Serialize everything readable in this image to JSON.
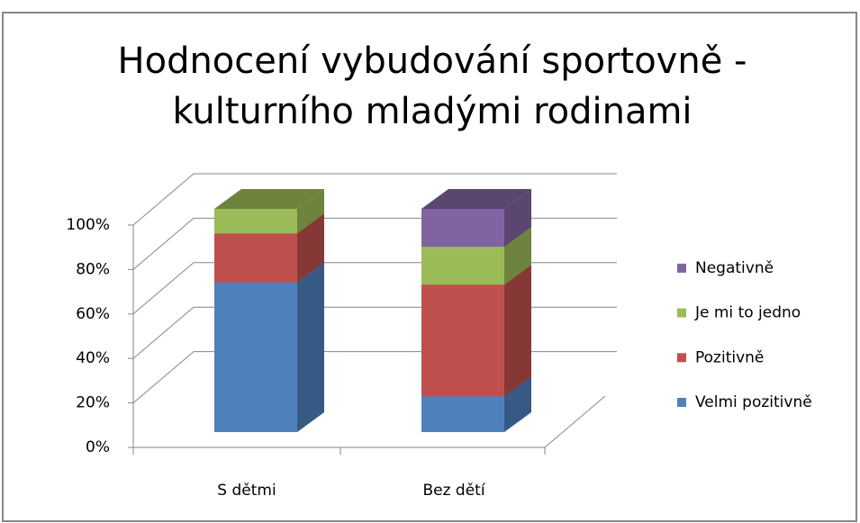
{
  "chart_data": {
    "type": "bar3d_stacked",
    "title": "Hodnocení vybudování sportovně - kulturního mladými rodinami",
    "categories": [
      "S dětmi",
      "Bez dětí"
    ],
    "series": [
      {
        "name": "Velmi pozitivně",
        "color": "#4f81bd",
        "values": [
          67,
          16
        ]
      },
      {
        "name": "Pozitivně",
        "color": "#c0504d",
        "values": [
          22,
          50
        ]
      },
      {
        "name": "Je mi to jedno",
        "color": "#9bbb59",
        "values": [
          11,
          17
        ]
      },
      {
        "name": "Negativně",
        "color": "#8064a2",
        "values": [
          0,
          17
        ]
      }
    ],
    "ylim": [
      0,
      100
    ],
    "yticks": [
      {
        "value": 0,
        "label": "0%"
      },
      {
        "value": 20,
        "label": "20%"
      },
      {
        "value": 40,
        "label": "40%"
      },
      {
        "value": 60,
        "label": "60%"
      },
      {
        "value": 80,
        "label": "80%"
      },
      {
        "value": 100,
        "label": "100%"
      }
    ],
    "grid": true,
    "legend": "right"
  }
}
